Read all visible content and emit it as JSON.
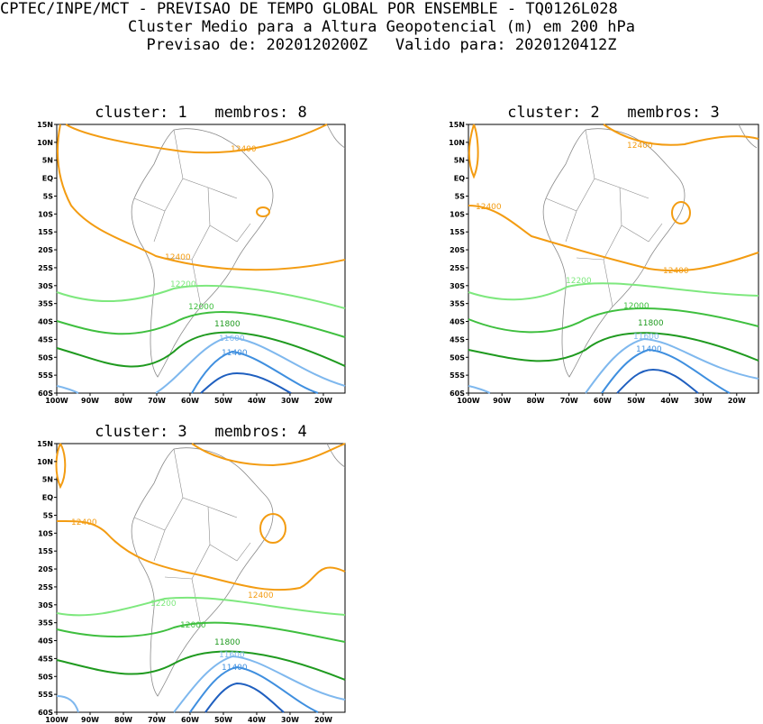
{
  "header": {
    "line1": "CPTEC/INPE/MCT - PREVISAO DE TEMPO GLOBAL POR ENSEMBLE - TQ0126L028",
    "line2": "Cluster Medio para a Altura Geopotencial (m) em 200 hPa",
    "line3": "Previsao de: 2020120200Z   Valido para: 2020120412Z"
  },
  "axes": {
    "lat_labels": [
      "15N",
      "10N",
      "5N",
      "EQ",
      "5S",
      "10S",
      "15S",
      "20S",
      "25S",
      "30S",
      "35S",
      "40S",
      "45S",
      "50S",
      "55S",
      "60S"
    ],
    "lon_labels": [
      "100W",
      "90W",
      "80W",
      "70W",
      "60W",
      "50W",
      "40W",
      "30W",
      "20W"
    ]
  },
  "colors": {
    "c12400": "#f39c12",
    "c12200": "#7ee87e",
    "c12000": "#3fbf3f",
    "c11800": "#1f9a1f",
    "c11600": "#7fb8ee",
    "c11400": "#3f8fdf",
    "c11200": "#1f5fbf",
    "land": "#8a8a8a"
  },
  "panels": [
    {
      "title": "cluster: 1   membros: 8",
      "labels": {
        "l12400a": "12400",
        "l12400b": "12400",
        "l12200": "12200",
        "l12000": "12000",
        "l11800": "11800",
        "l11600": "11600",
        "l11400": "11400"
      }
    },
    {
      "title": "cluster: 2   membros: 3",
      "labels": {
        "l12400a": "12400",
        "l12400b": "12400",
        "l12400c": "12400",
        "l12200": "12200",
        "l12000": "12000",
        "l11800": "11800",
        "l11600": "11600",
        "l11400": "11400"
      }
    },
    {
      "title": "cluster: 3   membros: 4",
      "labels": {
        "l12400a": "12400",
        "l12400b": "12400",
        "l12200": "12200",
        "l12000": "12000",
        "l11800": "11800",
        "l11600": "11600",
        "l11400": "11400"
      }
    }
  ]
}
